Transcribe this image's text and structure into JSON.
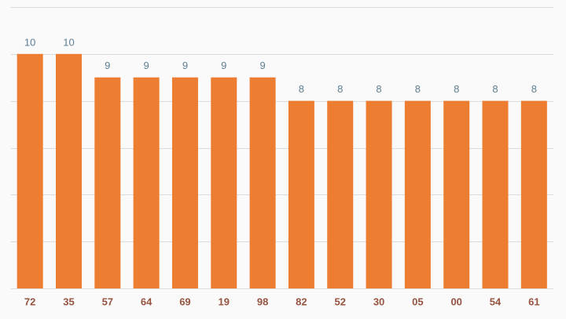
{
  "chart_data": {
    "type": "bar",
    "categories": [
      "72",
      "35",
      "57",
      "64",
      "69",
      "19",
      "98",
      "82",
      "52",
      "30",
      "05",
      "00",
      "54",
      "61"
    ],
    "values": [
      10,
      10,
      9,
      9,
      9,
      9,
      9,
      8,
      8,
      8,
      8,
      8,
      8,
      8
    ],
    "color": "#ed7d31",
    "ylim": [
      0,
      12
    ],
    "yticks": [
      0,
      2,
      4,
      6,
      8,
      10,
      12
    ],
    "grid": true
  }
}
